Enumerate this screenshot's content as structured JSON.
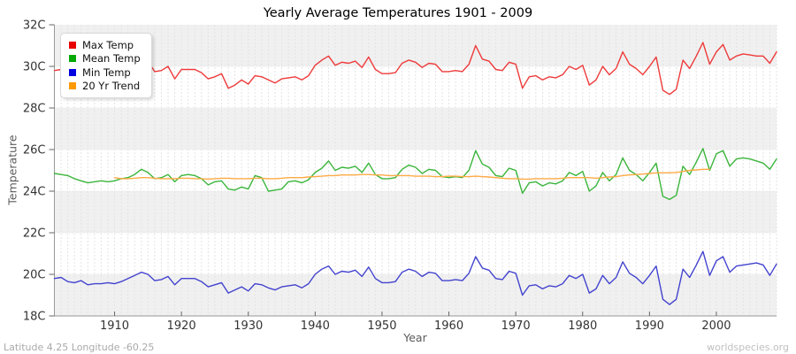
{
  "header": {
    "title": "Yearly Average Temperatures 1901 - 2009"
  },
  "footer": {
    "left": "Latitude 4.25 Longitude -60.25",
    "right": "worldspecies.org"
  },
  "colors": {
    "band": "#f0f0f0",
    "grid": "#e3e3e3",
    "axis": "#999999",
    "tick": "#666666",
    "tick_label": "#333333"
  },
  "chart_data": {
    "type": "line",
    "title": "Yearly Average Temperatures 1901 - 2009",
    "xlabel": "Year",
    "ylabel": "Temperature",
    "x_range": [
      1901,
      2009
    ],
    "ylim": [
      18,
      32
    ],
    "grid": "horizontal bands every 2C alternating gray/white, dashed vertical gridline per year",
    "legend_position": "top-left",
    "y_ticks": [
      {
        "value": 32,
        "label": "32C"
      },
      {
        "value": 30,
        "label": "30C"
      },
      {
        "value": 28,
        "label": "28C"
      },
      {
        "value": 26,
        "label": "26C"
      },
      {
        "value": 24,
        "label": "24C"
      },
      {
        "value": 22,
        "label": "22C"
      },
      {
        "value": 20,
        "label": "20C"
      },
      {
        "value": 18,
        "label": "18C"
      }
    ],
    "x_ticks": [
      {
        "value": 1910,
        "label": "1910"
      },
      {
        "value": 1920,
        "label": "1920"
      },
      {
        "value": 1930,
        "label": "1930"
      },
      {
        "value": 1940,
        "label": "1940"
      },
      {
        "value": 1950,
        "label": "1950"
      },
      {
        "value": 1960,
        "label": "1960"
      },
      {
        "value": 1970,
        "label": "1970"
      },
      {
        "value": 1980,
        "label": "1980"
      },
      {
        "value": 1990,
        "label": "1990"
      },
      {
        "value": 2000,
        "label": "2000"
      }
    ],
    "series": [
      {
        "name": "Max Temp",
        "color": "#ee3a3a",
        "swatch": "#e80000",
        "start_year": 1901,
        "values": [
          29.8,
          29.85,
          29.65,
          29.6,
          29.65,
          29.5,
          29.55,
          29.55,
          29.65,
          29.6,
          29.7,
          29.85,
          30.0,
          30.15,
          30.25,
          29.75,
          29.8,
          30.0,
          29.4,
          29.85,
          29.85,
          29.85,
          29.7,
          29.4,
          29.5,
          29.65,
          28.95,
          29.1,
          29.35,
          29.15,
          29.55,
          29.5,
          29.35,
          29.2,
          29.4,
          29.45,
          29.5,
          29.35,
          29.55,
          30.05,
          30.3,
          30.5,
          30.05,
          30.2,
          30.15,
          30.25,
          29.95,
          30.45,
          29.85,
          29.65,
          29.65,
          29.7,
          30.15,
          30.3,
          30.2,
          29.95,
          30.15,
          30.1,
          29.75,
          29.75,
          29.8,
          29.75,
          30.1,
          31.0,
          30.35,
          30.25,
          29.85,
          29.8,
          30.2,
          30.1,
          28.95,
          29.5,
          29.55,
          29.35,
          29.5,
          29.45,
          29.6,
          30.0,
          29.85,
          30.05,
          29.1,
          29.35,
          30.0,
          29.6,
          29.9,
          30.7,
          30.1,
          29.9,
          29.6,
          30.0,
          30.45,
          28.85,
          28.65,
          28.9,
          30.3,
          29.9,
          30.5,
          31.15,
          30.1,
          30.7,
          31.05,
          30.3,
          30.5,
          30.6,
          30.55,
          30.5,
          30.5,
          30.15,
          30.7
        ]
      },
      {
        "name": "Mean Temp",
        "color": "#3bb53b",
        "swatch": "#00a800",
        "start_year": 1901,
        "values": [
          24.85,
          24.8,
          24.75,
          24.6,
          24.5,
          24.4,
          24.45,
          24.5,
          24.45,
          24.5,
          24.6,
          24.65,
          24.8,
          25.05,
          24.9,
          24.6,
          24.65,
          24.8,
          24.45,
          24.75,
          24.8,
          24.75,
          24.6,
          24.3,
          24.45,
          24.5,
          24.1,
          24.05,
          24.2,
          24.1,
          24.75,
          24.65,
          24.0,
          24.05,
          24.1,
          24.45,
          24.5,
          24.4,
          24.55,
          24.9,
          25.1,
          25.45,
          25.0,
          25.15,
          25.1,
          25.2,
          24.9,
          25.35,
          24.8,
          24.6,
          24.6,
          24.65,
          25.05,
          25.25,
          25.15,
          24.85,
          25.05,
          25.0,
          24.7,
          24.65,
          24.7,
          24.65,
          25.0,
          25.95,
          25.3,
          25.15,
          24.75,
          24.7,
          25.1,
          25.0,
          23.9,
          24.4,
          24.45,
          24.25,
          24.4,
          24.35,
          24.5,
          24.9,
          24.75,
          24.95,
          24.0,
          24.25,
          24.9,
          24.5,
          24.8,
          25.6,
          25.0,
          24.8,
          24.5,
          24.9,
          25.35,
          23.75,
          23.6,
          23.8,
          25.2,
          24.8,
          25.4,
          26.05,
          25.0,
          25.8,
          25.95,
          25.2,
          25.55,
          25.6,
          25.55,
          25.45,
          25.35,
          25.05,
          25.55
        ]
      },
      {
        "name": "Min Temp",
        "color": "#4343cf",
        "swatch": "#0000e0",
        "start_year": 1901,
        "values": [
          19.8,
          19.85,
          19.65,
          19.6,
          19.7,
          19.5,
          19.55,
          19.55,
          19.6,
          19.55,
          19.65,
          19.8,
          19.95,
          20.1,
          20.0,
          19.7,
          19.75,
          19.9,
          19.5,
          19.8,
          19.8,
          19.8,
          19.65,
          19.4,
          19.5,
          19.6,
          19.1,
          19.25,
          19.4,
          19.2,
          19.55,
          19.5,
          19.35,
          19.25,
          19.4,
          19.45,
          19.5,
          19.35,
          19.55,
          20.0,
          20.25,
          20.4,
          20.0,
          20.15,
          20.1,
          20.2,
          19.9,
          20.35,
          19.8,
          19.6,
          19.6,
          19.65,
          20.1,
          20.25,
          20.15,
          19.9,
          20.1,
          20.05,
          19.7,
          19.7,
          19.75,
          19.7,
          20.05,
          20.85,
          20.3,
          20.2,
          19.8,
          19.75,
          20.15,
          20.05,
          19.0,
          19.45,
          19.5,
          19.3,
          19.45,
          19.4,
          19.55,
          19.95,
          19.8,
          20.0,
          19.1,
          19.3,
          19.95,
          19.55,
          19.85,
          20.6,
          20.05,
          19.85,
          19.55,
          19.95,
          20.4,
          18.8,
          18.55,
          18.8,
          20.25,
          19.85,
          20.45,
          21.1,
          19.95,
          20.65,
          20.85,
          20.1,
          20.4,
          20.45,
          20.5,
          20.55,
          20.45,
          19.95,
          20.5
        ]
      },
      {
        "name": "20 Yr Trend",
        "color": "#ffaa44",
        "swatch": "#ff9900",
        "start_year": 1910,
        "values": [
          24.65,
          24.6,
          24.6,
          24.62,
          24.65,
          24.65,
          24.62,
          24.6,
          24.6,
          24.6,
          24.62,
          24.62,
          24.6,
          24.6,
          24.58,
          24.6,
          24.62,
          24.62,
          24.6,
          24.6,
          24.6,
          24.62,
          24.62,
          24.6,
          24.6,
          24.62,
          24.65,
          24.65,
          24.65,
          24.68,
          24.7,
          24.72,
          24.75,
          24.75,
          24.78,
          24.78,
          24.78,
          24.8,
          24.8,
          24.78,
          24.78,
          24.75,
          24.75,
          24.75,
          24.75,
          24.72,
          24.72,
          24.72,
          24.7,
          24.7,
          24.72,
          24.72,
          24.7,
          24.7,
          24.72,
          24.7,
          24.68,
          24.65,
          24.62,
          24.6,
          24.6,
          24.58,
          24.58,
          24.6,
          24.6,
          24.6,
          24.6,
          24.62,
          24.65,
          24.65,
          24.65,
          24.65,
          24.62,
          24.65,
          24.68,
          24.7,
          24.75,
          24.78,
          24.8,
          24.82,
          24.85,
          24.88,
          24.88,
          24.88,
          24.9,
          24.95,
          25.0,
          25.02,
          25.05,
          25.05
        ]
      }
    ]
  }
}
